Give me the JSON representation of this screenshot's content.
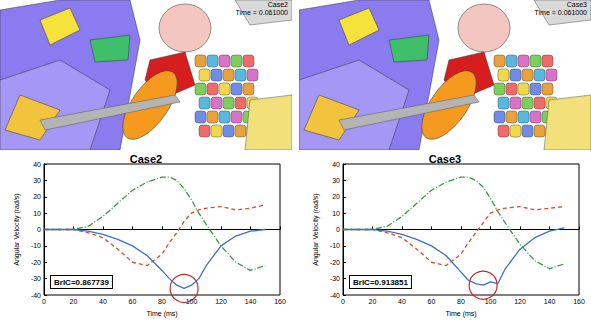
{
  "images": [
    {
      "case": "Case2",
      "time": "Time = 0.061000"
    },
    {
      "case": "Case3",
      "time": "Time = 0.061000"
    }
  ],
  "chart_data": [
    {
      "type": "line",
      "title": "Case2",
      "x_label": "Time (ms)",
      "y_label": "Angular Velocity (rad/s)",
      "annotation": "BrIC=0.867739",
      "x": [
        0,
        10,
        20,
        30,
        40,
        50,
        60,
        70,
        80,
        85,
        90,
        95,
        100,
        105,
        110,
        120,
        130,
        140,
        150
      ],
      "series": [
        {
          "color": "#2e9e3a",
          "line_style": "dashdot",
          "values": [
            0,
            0,
            0,
            2,
            8,
            16,
            24,
            29,
            32,
            32,
            30,
            25,
            18,
            10,
            3,
            -10,
            -20,
            -25,
            -22
          ]
        },
        {
          "color": "#d9502a",
          "line_style": "dashed",
          "values": [
            0,
            0,
            0,
            -2,
            -5,
            -12,
            -20,
            -22,
            -15,
            -8,
            -2,
            5,
            10,
            12,
            13,
            14,
            12,
            13,
            15
          ]
        },
        {
          "color": "#3d6fd0",
          "line_style": "solid",
          "values": [
            0,
            0,
            0,
            -1,
            -3,
            -6,
            -10,
            -16,
            -25,
            -30,
            -34,
            -36,
            -34,
            -30,
            -22,
            -10,
            -4,
            -1,
            0
          ]
        }
      ],
      "xlim": [
        0,
        160
      ],
      "xticks": [
        0,
        20,
        40,
        60,
        80,
        100,
        120,
        140,
        160
      ],
      "ylim": [
        -40,
        40
      ],
      "yticks": [
        -40,
        -30,
        -20,
        -10,
        0,
        10,
        20,
        30,
        40
      ],
      "grid": false
    },
    {
      "type": "line",
      "title": "Case3",
      "x_label": "Time (ms)",
      "y_label": "Angular Velocity (rad/s)",
      "annotation": "BrIC=0.913851",
      "x": [
        0,
        10,
        20,
        30,
        40,
        50,
        60,
        70,
        80,
        85,
        90,
        95,
        100,
        105,
        110,
        120,
        130,
        140,
        150
      ],
      "series": [
        {
          "color": "#2e9e3a",
          "line_style": "dashdot",
          "values": [
            0,
            0,
            0,
            2,
            8,
            16,
            24,
            29,
            32,
            32,
            30,
            26,
            19,
            11,
            4,
            -9,
            -19,
            -24,
            -21
          ]
        },
        {
          "color": "#d9502a",
          "line_style": "dashed",
          "values": [
            0,
            0,
            0,
            -2,
            -5,
            -12,
            -20,
            -22,
            -15,
            -8,
            -2,
            4,
            10,
            12,
            13,
            14,
            12,
            13,
            14
          ]
        },
        {
          "color": "#3d6fd0",
          "line_style": "solid",
          "values": [
            0,
            0,
            0,
            -1,
            -3,
            -6,
            -10,
            -16,
            -26,
            -31,
            -33,
            -34,
            -32,
            -33,
            -24,
            -12,
            -5,
            -1,
            1
          ]
        }
      ],
      "xlim": [
        0,
        160
      ],
      "xticks": [
        0,
        20,
        40,
        60,
        80,
        100,
        120,
        140,
        160
      ],
      "ylim": [
        -40,
        40
      ],
      "yticks": [
        -40,
        -30,
        -20,
        -10,
        0,
        10,
        20,
        30,
        40
      ],
      "grid": false
    }
  ]
}
